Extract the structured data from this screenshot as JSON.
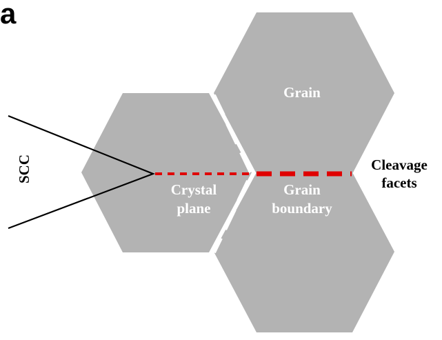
{
  "figure": {
    "panel_letter": "a",
    "labels": {
      "crack": "SCC",
      "grain": "Grain",
      "crystal_plane_line1": "Crystal",
      "crystal_plane_line2": "plane",
      "grain_boundary_line1": "Grain",
      "grain_boundary_line2": "boundary",
      "cleavage_line1": "Cleavage",
      "cleavage_line2": "facets"
    },
    "colors": {
      "grain_fill": "#b3b3b3",
      "boundary_dash": "#ffffff",
      "crack_path": "#e00000",
      "crack_outline": "#000000",
      "label_text_light": "#ffffff",
      "label_text_dark": "#000000"
    }
  }
}
